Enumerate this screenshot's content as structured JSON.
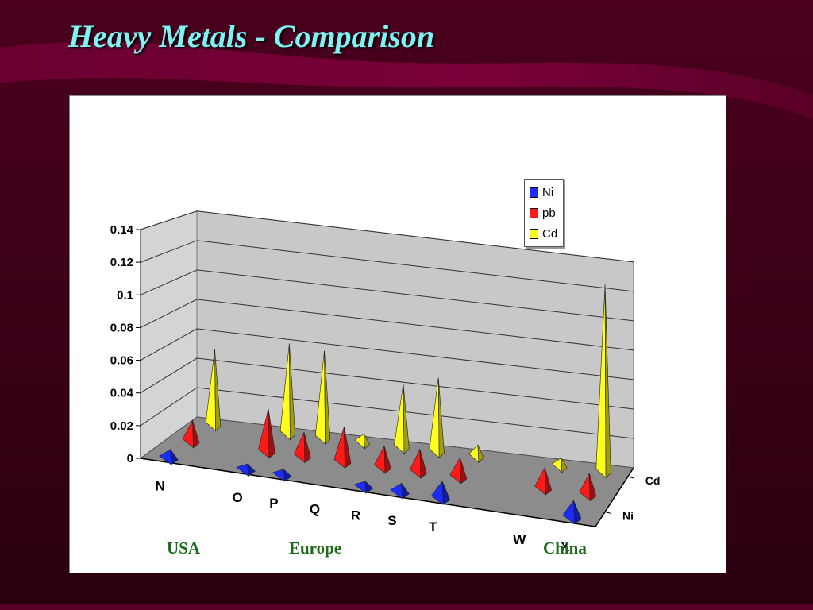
{
  "slide": {
    "title": "Heavy Metals - Comparison"
  },
  "regions": [
    {
      "id": "usa",
      "label": "USA"
    },
    {
      "id": "europe",
      "label": "Europe"
    },
    {
      "id": "china",
      "label": "China"
    }
  ],
  "colors": {
    "background": "#3a0016",
    "Ni": "#1a2cff",
    "pb": "#ff1a1a",
    "Cd": "#ffff1a",
    "floor": "#8c8c8c",
    "wall": "#c8c8c8",
    "region_text": "#1b6b1b",
    "title": "#7ff3f3"
  },
  "chart_data": {
    "type": "bar",
    "style": "3d-pyramid",
    "categories": [
      "N",
      "O",
      "P",
      "Q",
      "R",
      "S",
      "T",
      "W",
      "X"
    ],
    "series": [
      {
        "name": "Ni",
        "values": [
          0.005,
          0.003,
          0.003,
          null,
          0.003,
          0.005,
          0.01,
          null,
          0.01
        ]
      },
      {
        "name": "pb",
        "values": [
          0.013,
          0.027,
          0.015,
          0.022,
          0.013,
          0.014,
          0.012,
          0.013,
          0.013
        ]
      },
      {
        "name": "Cd",
        "values": [
          0.05,
          0.06,
          0.058,
          0.005,
          0.042,
          0.049,
          0.007,
          0.005,
          0.125
        ]
      }
    ],
    "depth_labels": [
      "Ni",
      "Cd"
    ],
    "yticks": [
      "0",
      "0.02",
      "0.04",
      "0.06",
      "0.08",
      "0.1",
      "0.12",
      "0.14"
    ],
    "ylim": [
      0,
      0.14
    ],
    "grid": true,
    "legend": {
      "position": "top-right",
      "entries": [
        "Ni",
        "pb",
        "Cd"
      ]
    }
  }
}
